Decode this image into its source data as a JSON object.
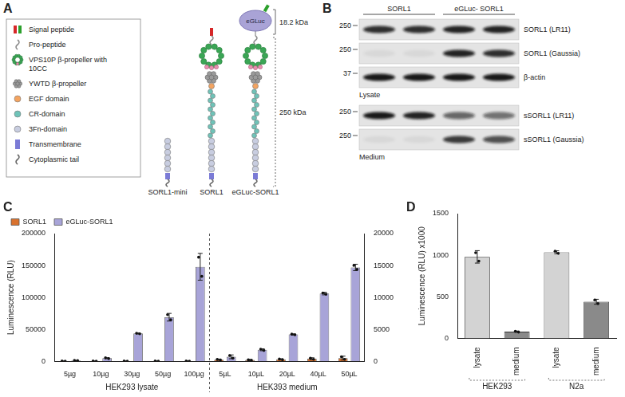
{
  "panels": {
    "A": {
      "panel_label": "A",
      "key_items": [
        "Signal peptide",
        "Pro-peptide",
        "VPS10P β-propeller with 10CC",
        "YWTD β-propeller",
        "EGF domain",
        "CR-domain",
        "3Fn-domain",
        "Transmembrane",
        "Cytoplasmic tail"
      ],
      "molecules": [
        "SORL1-mini",
        "SORL1",
        "eGLuc-SORL1"
      ],
      "tag": "eGLuc",
      "sizes": [
        "18.2 kDa",
        "250 kDa"
      ]
    },
    "B": {
      "panel_label": "B",
      "lane_groups": [
        "SORL1",
        "eGLuc- SORL1"
      ],
      "sections": [
        {
          "label": "Lysate",
          "blots": [
            {
              "label": "SORL1 (LR11)",
              "marker": 250,
              "lanes": [
                0.85,
                0.85,
                0.9,
                0.9
              ]
            },
            {
              "label": "SORL1 (Gaussia)",
              "marker": 250,
              "lanes": [
                0.05,
                0.05,
                0.9,
                0.85
              ]
            },
            {
              "label": "β-actin",
              "marker": 37,
              "lanes": [
                0.95,
                0.95,
                0.95,
                0.95
              ]
            }
          ]
        },
        {
          "label": "Medium",
          "blots": [
            {
              "label": "sSORL1 (LR11)",
              "marker": 250,
              "lanes": [
                0.95,
                0.9,
                0.6,
                0.55
              ]
            },
            {
              "label": "sSORL1 (Gaussia)",
              "marker": 250,
              "lanes": [
                0.05,
                0.05,
                0.8,
                0.7
              ]
            }
          ]
        }
      ]
    }
  },
  "chart_data": [
    {
      "panel_label": "C",
      "type": "bar",
      "y_label": "Luminescence (RLU)",
      "categories": [
        "5µg",
        "10µg",
        "30µg",
        "50µg",
        "100µg",
        "5µL",
        "10µL",
        "20µL",
        "40µL",
        "50µL"
      ],
      "group_labels": [
        "HEK293 lysate",
        "HEK393 medium"
      ],
      "series": [
        {
          "name": "SORL1",
          "color": "#d9722e",
          "values": [
            300,
            300,
            300,
            300,
            400,
            null,
            null,
            null,
            null,
            null
          ],
          "errors": [
            100,
            100,
            100,
            100,
            100,
            null,
            null,
            null,
            null,
            null
          ],
          "points": [
            [
              400,
              200
            ],
            [
              400,
              200
            ],
            [
              400,
              200
            ],
            [
              400,
              200
            ],
            [
              500,
              300
            ],
            null,
            null,
            null,
            null,
            null
          ]
        },
        {
          "name": "eGLuc-SORL1",
          "color": "#a8a4d8",
          "values": [
            1200,
            4800,
            43500,
            69000,
            148000,
            null,
            null,
            null,
            null,
            null
          ],
          "errors": [
            300,
            800,
            800,
            6000,
            21000,
            null,
            null,
            null,
            null,
            null
          ],
          "points": [
            [
              1400,
              1000
            ],
            [
              5400,
              4200
            ],
            [
              44000,
              43000
            ],
            [
              73000,
              65000
            ],
            [
              163000,
              133000
            ],
            null,
            null,
            null,
            null,
            null
          ]
        },
        {
          "name": "SORL1",
          "color": "#d9722e",
          "axis": "y2",
          "values": [
            null,
            null,
            null,
            null,
            null,
            250,
            200,
            300,
            400,
            500
          ],
          "errors": [
            null,
            null,
            null,
            null,
            null,
            100,
            100,
            100,
            150,
            300
          ],
          "points": [
            null,
            null,
            null,
            null,
            null,
            [
              300,
              200
            ],
            [
              250,
              150
            ],
            [
              350,
              250
            ],
            [
              500,
              300
            ],
            [
              700,
              300
            ]
          ]
        },
        {
          "name": "eGLuc-SORL1",
          "color": "#a8a4d8",
          "axis": "y2",
          "values": [
            null,
            null,
            null,
            null,
            null,
            700,
            1800,
            4200,
            10600,
            14700
          ],
          "errors": [
            null,
            null,
            null,
            null,
            null,
            300,
            150,
            100,
            200,
            500
          ],
          "points": [
            null,
            null,
            null,
            null,
            null,
            [
              900,
              500
            ],
            [
              1900,
              1700
            ],
            [
              4250,
              4150
            ],
            [
              10700,
              10500
            ],
            [
              15000,
              14400
            ]
          ]
        }
      ],
      "ylim": [
        0,
        200000
      ],
      "yticks": [
        0,
        50000,
        100000,
        150000,
        200000
      ],
      "y2lim": [
        0,
        20000
      ],
      "y2ticks": [
        0,
        5000,
        10000,
        15000,
        20000
      ],
      "grid": false,
      "legend": "top-left"
    },
    {
      "panel_label": "D",
      "type": "bar",
      "y_label": "Luminescence (RLU) x1000",
      "categories": [
        "lysate",
        "medium",
        "lysate",
        "medium"
      ],
      "group_labels": [
        "HEK293",
        "N2a"
      ],
      "values": [
        980,
        80,
        1035,
        440
      ],
      "errors": [
        75,
        8,
        18,
        30
      ],
      "points": [
        [
          1030,
          930
        ],
        [
          86,
          75
        ],
        [
          1048,
          1022
        ],
        [
          462,
          418
        ]
      ],
      "colors": [
        "#d3d3d3",
        "#8a8a8a",
        "#d3d3d3",
        "#8a8a8a"
      ],
      "ylim": [
        0,
        1500
      ],
      "yticks": [
        0,
        500,
        1000,
        1500
      ],
      "grid": false
    }
  ]
}
